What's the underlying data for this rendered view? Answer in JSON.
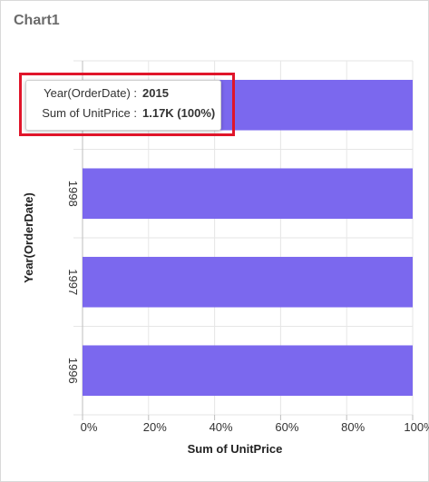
{
  "panel": {
    "title": "Chart1"
  },
  "chart_data": {
    "type": "bar",
    "orientation": "horizontal",
    "categories": [
      "1996",
      "1997",
      "1998",
      "2015"
    ],
    "series": [
      {
        "values": [
          100,
          100,
          100,
          100
        ]
      }
    ],
    "xlabel": "Sum of UnitPrice",
    "ylabel": "Year(OrderDate)",
    "xlim": [
      0,
      100
    ],
    "xticks": [
      "0%",
      "20%",
      "40%",
      "60%",
      "80%",
      "100%"
    ],
    "grid": true,
    "bar_color": "#7b68ee"
  },
  "tooltip": {
    "rows": [
      {
        "label": "Year(OrderDate) :",
        "value": "2015"
      },
      {
        "label": "Sum of UnitPrice :",
        "value": "1.17K (100%)"
      }
    ]
  },
  "highlight": {
    "color": "#e0152a"
  }
}
